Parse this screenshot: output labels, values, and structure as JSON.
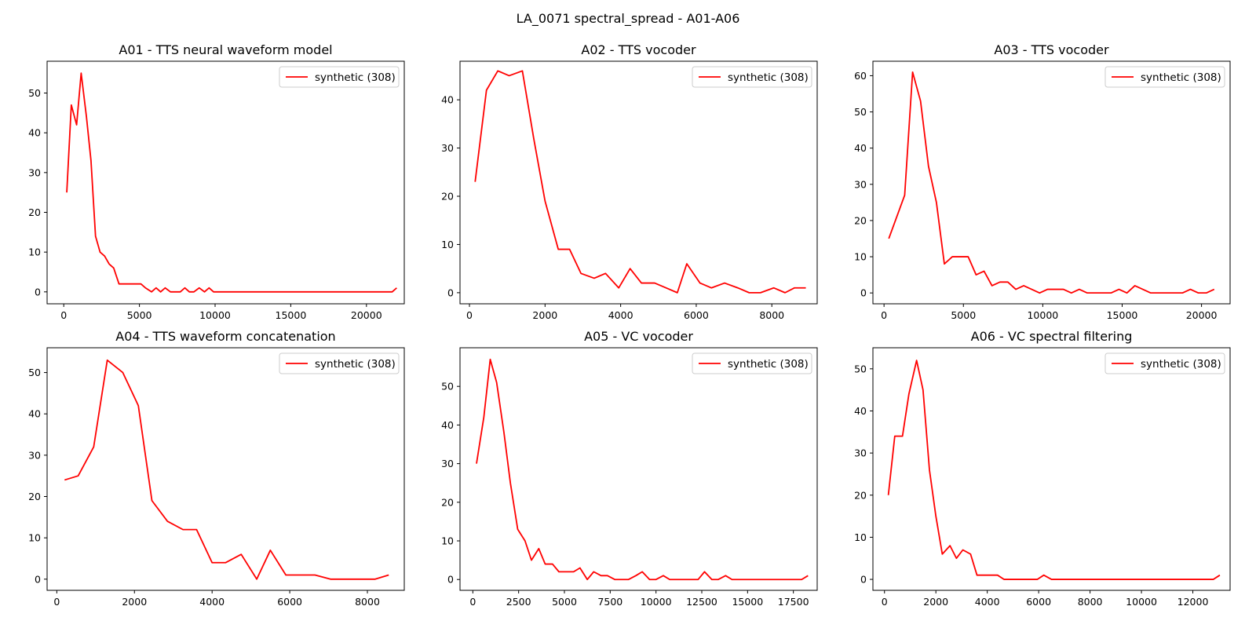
{
  "figure": {
    "suptitle": "LA_0071 spectral_spread - A01-A06"
  },
  "chart_data": [
    {
      "type": "line",
      "title": "A01 - TTS neural waveform model",
      "xlabel": "",
      "ylabel": "",
      "xlim": [
        -1100,
        22500
      ],
      "ylim": [
        -3,
        58
      ],
      "xticks": [
        0,
        5000,
        10000,
        15000,
        20000
      ],
      "yticks": [
        0,
        10,
        20,
        30,
        40,
        50
      ],
      "legend": "top-right",
      "series": [
        {
          "name": "synthetic (308)",
          "color": "#ff0000",
          "x": [
            200,
            500,
            850,
            1150,
            1500,
            1800,
            2100,
            2400,
            2700,
            3000,
            3300,
            3650,
            3900,
            4200,
            4500,
            4800,
            5100,
            5400,
            5800,
            6100,
            6400,
            6700,
            7050,
            7350,
            7700,
            8000,
            8300,
            8600,
            8950,
            9300,
            9600,
            9900,
            10200,
            12000,
            14000,
            16000,
            18000,
            20000,
            21700,
            22000
          ],
          "y": [
            25,
            47,
            42,
            55,
            44,
            33,
            14,
            10,
            9,
            7,
            6,
            2,
            2,
            2,
            2,
            2,
            2,
            1,
            0,
            1,
            0,
            1,
            0,
            0,
            0,
            1,
            0,
            0,
            1,
            0,
            1,
            0,
            0,
            0,
            0,
            0,
            0,
            0,
            0,
            1
          ]
        }
      ]
    },
    {
      "type": "line",
      "title": "A02 - TTS vocoder",
      "xlabel": "",
      "ylabel": "",
      "xlim": [
        -250,
        9200
      ],
      "ylim": [
        -2.3,
        48
      ],
      "xticks": [
        0,
        2000,
        4000,
        6000,
        8000
      ],
      "yticks": [
        0,
        10,
        20,
        30,
        40
      ],
      "legend": "top-right",
      "series": [
        {
          "name": "synthetic (308)",
          "color": "#ff0000",
          "x": [
            150,
            450,
            750,
            1050,
            1400,
            1700,
            2000,
            2350,
            2650,
            2950,
            3300,
            3600,
            3950,
            4250,
            4550,
            4900,
            5200,
            5500,
            5750,
            6100,
            6400,
            6750,
            7100,
            7400,
            7700,
            8050,
            8350,
            8600,
            8900
          ],
          "y": [
            23,
            42,
            46,
            45,
            46,
            32,
            19,
            9,
            9,
            4,
            3,
            4,
            1,
            5,
            2,
            2,
            1,
            0,
            6,
            2,
            1,
            2,
            1,
            0,
            0,
            1,
            0,
            1,
            1
          ]
        }
      ]
    },
    {
      "type": "line",
      "title": "A03 - TTS vocoder",
      "xlabel": "",
      "ylabel": "",
      "xlim": [
        -700,
        21800
      ],
      "ylim": [
        -3,
        64
      ],
      "xticks": [
        0,
        5000,
        10000,
        15000,
        20000
      ],
      "yticks": [
        0,
        10,
        20,
        30,
        40,
        50,
        60
      ],
      "legend": "top-right",
      "series": [
        {
          "name": "synthetic (308)",
          "color": "#ff0000",
          "x": [
            300,
            1300,
            1800,
            2300,
            2800,
            3300,
            3800,
            4300,
            4800,
            5300,
            5800,
            6300,
            6800,
            7300,
            7800,
            8300,
            8800,
            9300,
            9800,
            10300,
            10800,
            11300,
            11800,
            12300,
            12800,
            13300,
            13800,
            14300,
            14800,
            15300,
            15800,
            16300,
            16800,
            17300,
            17800,
            18300,
            18800,
            19300,
            19800,
            20300,
            20800
          ],
          "y": [
            15,
            27,
            61,
            53,
            35,
            25,
            8,
            10,
            10,
            10,
            5,
            6,
            2,
            3,
            3,
            1,
            2,
            1,
            0,
            1,
            1,
            1,
            0,
            1,
            0,
            0,
            0,
            0,
            1,
            0,
            2,
            1,
            0,
            0,
            0,
            0,
            0,
            1,
            0,
            0,
            1
          ]
        }
      ]
    },
    {
      "type": "line",
      "title": "A04 - TTS waveform concatenation",
      "xlabel": "",
      "ylabel": "",
      "xlim": [
        -250,
        8950
      ],
      "ylim": [
        -2.7,
        56
      ],
      "xticks": [
        0,
        2000,
        4000,
        6000,
        8000
      ],
      "yticks": [
        0,
        10,
        20,
        30,
        40,
        50
      ],
      "legend": "top-right",
      "series": [
        {
          "name": "synthetic (308)",
          "color": "#ff0000",
          "x": [
            200,
            550,
            950,
            1300,
            1700,
            2100,
            2450,
            2850,
            3250,
            3600,
            4000,
            4350,
            4750,
            5150,
            5500,
            5900,
            6300,
            6650,
            7050,
            7450,
            7850,
            8200,
            8550
          ],
          "y": [
            24,
            25,
            32,
            53,
            50,
            42,
            19,
            14,
            12,
            12,
            4,
            4,
            6,
            0,
            7,
            1,
            1,
            1,
            0,
            0,
            0,
            0,
            1
          ]
        }
      ]
    },
    {
      "type": "line",
      "title": "A05 - VC vocoder",
      "xlabel": "",
      "ylabel": "",
      "xlim": [
        -700,
        18800
      ],
      "ylim": [
        -2.8,
        60
      ],
      "xticks": [
        0,
        2500,
        5000,
        7500,
        10000,
        12500,
        15000,
        17500
      ],
      "yticks": [
        0,
        10,
        20,
        30,
        40,
        50
      ],
      "legend": "top-right",
      "series": [
        {
          "name": "synthetic (308)",
          "color": "#ff0000",
          "x": [
            200,
            600,
            950,
            1300,
            1700,
            2050,
            2450,
            2850,
            3200,
            3600,
            3950,
            4350,
            4700,
            5100,
            5500,
            5850,
            6250,
            6600,
            7000,
            7350,
            7750,
            8100,
            8500,
            8900,
            9250,
            9650,
            10000,
            10400,
            10750,
            11150,
            11500,
            11900,
            12300,
            12650,
            13050,
            13400,
            13800,
            14150,
            14550,
            14900,
            15300,
            15700,
            16050,
            16450,
            16800,
            17200,
            17550,
            17950,
            18300
          ],
          "y": [
            30,
            42,
            57,
            51,
            38,
            25,
            13,
            10,
            5,
            8,
            4,
            4,
            2,
            2,
            2,
            3,
            0,
            2,
            1,
            1,
            0,
            0,
            0,
            1,
            2,
            0,
            0,
            1,
            0,
            0,
            0,
            0,
            0,
            2,
            0,
            0,
            1,
            0,
            0,
            0,
            0,
            0,
            0,
            0,
            0,
            0,
            0,
            0,
            1
          ]
        }
      ]
    },
    {
      "type": "line",
      "title": "A06 - VC spectral filtering",
      "xlabel": "",
      "ylabel": "",
      "xlim": [
        -450,
        13450
      ],
      "ylim": [
        -2.6,
        55
      ],
      "xticks": [
        0,
        2000,
        4000,
        6000,
        8000,
        10000,
        12000
      ],
      "yticks": [
        0,
        10,
        20,
        30,
        40,
        50
      ],
      "legend": "top-right",
      "series": [
        {
          "name": "synthetic (308)",
          "color": "#ff0000",
          "x": [
            150,
            400,
            700,
            950,
            1250,
            1500,
            1750,
            2000,
            2250,
            2550,
            2800,
            3050,
            3350,
            3600,
            3850,
            4100,
            4400,
            4650,
            4900,
            5150,
            5450,
            5700,
            5950,
            6200,
            6500,
            6750,
            7000,
            7250,
            7550,
            7800,
            8050,
            8300,
            8600,
            8850,
            9100,
            9350,
            9650,
            9900,
            10150,
            10400,
            10700,
            10950,
            11200,
            11450,
            11750,
            12000,
            12250,
            12500,
            12800,
            13050
          ],
          "y": [
            20,
            34,
            34,
            44,
            52,
            45,
            26,
            15,
            6,
            8,
            5,
            7,
            6,
            1,
            1,
            1,
            1,
            0,
            0,
            0,
            0,
            0,
            0,
            1,
            0,
            0,
            0,
            0,
            0,
            0,
            0,
            0,
            0,
            0,
            0,
            0,
            0,
            0,
            0,
            0,
            0,
            0,
            0,
            0,
            0,
            0,
            0,
            0,
            0,
            1
          ]
        }
      ]
    }
  ]
}
